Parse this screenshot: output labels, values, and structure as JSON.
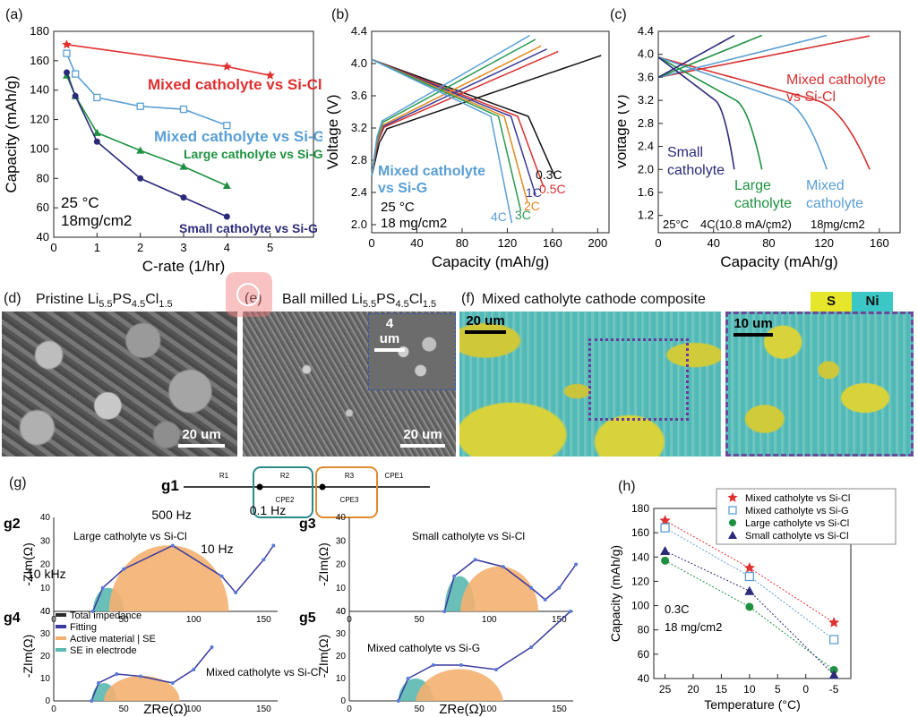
{
  "panels": {
    "a": "(a)",
    "b": "(b)",
    "c": "(c)",
    "d": "(d)",
    "e": "(e)",
    "f": "(f)",
    "g": "(g)",
    "h": "(h)"
  },
  "micrographs": {
    "d_title_pre": "Pristine Li",
    "d_sub1": "5.5",
    "d_mid1": "PS",
    "d_sub2": "4.5",
    "d_mid2": "Cl",
    "d_sub3": "1.5",
    "e_title_pre": "Ball milled Li",
    "f_title": "Mixed catholyte cathode composite",
    "legend_s": "S",
    "legend_ni": "Ni",
    "scale_d": "20 um",
    "scale_e": "20 um",
    "scale_e_inset": "4 um",
    "scale_f": "20 um",
    "scale_f_zoom": "10 um"
  },
  "chart_data": [
    {
      "id": "a",
      "type": "line",
      "xlabel": "C-rate (1/hr)",
      "ylabel": "Capacity (mAh/g)",
      "xlim": [
        0,
        6
      ],
      "ylim": [
        40,
        180
      ],
      "xticks": [
        0,
        1,
        2,
        3,
        4,
        5
      ],
      "yticks": [
        40,
        60,
        80,
        100,
        120,
        140,
        160,
        180
      ],
      "notes": [
        "25 °C",
        "18mg/cm2"
      ],
      "series": [
        {
          "name": "Mixed catholyte vs Si-Cl",
          "color": "#e03030",
          "marker": "star",
          "x": [
            0.3,
            4,
            5
          ],
          "y": [
            171,
            156,
            150
          ]
        },
        {
          "name": "Mixed catholyte vs Si-G",
          "color": "#5a9fd4",
          "marker": "square",
          "x": [
            0.3,
            0.5,
            1,
            2,
            3,
            4
          ],
          "y": [
            165,
            151,
            135,
            129,
            127,
            116
          ]
        },
        {
          "name": "Large catholyte vs Si-G",
          "color": "#1e9140",
          "marker": "triangle",
          "x": [
            0.3,
            0.5,
            1,
            2,
            3,
            4
          ],
          "y": [
            150,
            136,
            111,
            99,
            88,
            75
          ]
        },
        {
          "name": "Small catholyte vs Si-G",
          "color": "#2b2b7a",
          "marker": "circle",
          "x": [
            0.3,
            0.5,
            1,
            2,
            3,
            4
          ],
          "y": [
            152,
            136,
            105,
            80,
            67,
            54
          ]
        }
      ],
      "labels": [
        {
          "text": "Mixed catholyte vs Si-Cl",
          "color": "#e03030"
        },
        {
          "text": "Mixed catholyte vs Si-G",
          "color": "#5a9fd4"
        },
        {
          "text": "Large catholyte vs Si-G",
          "color": "#1e9140"
        },
        {
          "text": "Small catholyte vs Si-G",
          "color": "#2b2b7a"
        }
      ]
    },
    {
      "id": "b",
      "type": "line",
      "xlabel": "Capacity (mAh/g)",
      "ylabel": "Voltage (V)",
      "xlim": [
        0,
        210
      ],
      "ylim": [
        1.9,
        4.4
      ],
      "xticks": [
        0,
        40,
        80,
        120,
        160,
        200
      ],
      "yticks": [
        2.0,
        2.4,
        2.8,
        3.2,
        3.6,
        4.0,
        4.4
      ],
      "notes": [
        "Mixed catholyte",
        "vs Si-G",
        "25 °C",
        "18 mg/cm2"
      ],
      "series": [
        {
          "name": "0.3C",
          "color": "#111111",
          "charge_end": [
            203,
            4.1
          ],
          "discharge_end": [
            163,
            2.55
          ]
        },
        {
          "name": "0.5C",
          "color": "#d83030",
          "charge_end": [
            165,
            4.15
          ],
          "discharge_end": [
            152,
            2.45
          ]
        },
        {
          "name": "1C",
          "color": "#3a3a9a",
          "charge_end": [
            155,
            4.18
          ],
          "discharge_end": [
            145,
            2.35
          ]
        },
        {
          "name": "2C",
          "color": "#e08a20",
          "charge_end": [
            150,
            4.22
          ],
          "discharge_end": [
            138,
            2.25
          ]
        },
        {
          "name": "3C",
          "color": "#2a9a50",
          "charge_end": [
            145,
            4.3
          ],
          "discharge_end": [
            132,
            2.15
          ]
        },
        {
          "name": "4C",
          "color": "#5a9fd4",
          "charge_end": [
            140,
            4.35
          ],
          "discharge_end": [
            124,
            2.0
          ]
        }
      ]
    },
    {
      "id": "c",
      "type": "line",
      "xlabel": "Capacity (mAh/g)",
      "ylabel": "Voltage (V)",
      "xlim": [
        0,
        175
      ],
      "ylim": [
        0.9,
        4.4
      ],
      "xticks": [
        0,
        40,
        80,
        120,
        160
      ],
      "yticks": [
        1.2,
        1.6,
        2.0,
        2.4,
        2.8,
        3.2,
        3.6,
        4.0,
        4.4
      ],
      "notes": [
        "25°C",
        "4C(10.8 mA/cm2)",
        "18mg/cm2"
      ],
      "series": [
        {
          "name": "Mixed catholyte vs Si-Cl",
          "color": "#d83030",
          "charge_end": [
            153,
            4.32
          ],
          "discharge_end": [
            153,
            2.0
          ]
        },
        {
          "name": "Mixed catholyte",
          "color": "#5a9fd4",
          "charge_end": [
            122,
            4.33
          ],
          "discharge_end": [
            122,
            2.05
          ]
        },
        {
          "name": "Large catholyte",
          "color": "#1e9140",
          "charge_end": [
            75,
            4.33
          ],
          "discharge_end": [
            75,
            2.0
          ]
        },
        {
          "name": "Small catholyte",
          "color": "#2b2b7a",
          "charge_end": [
            55,
            4.33
          ],
          "discharge_end": [
            55,
            2.0
          ]
        }
      ],
      "labels": [
        {
          "text": "Mixed catholyte",
          "color": "#d83030"
        },
        {
          "text": "vs Si-Cl",
          "color": "#d83030"
        },
        {
          "text": "Small",
          "color": "#2b2b7a"
        },
        {
          "text": "catholyte",
          "color": "#2b2b7a"
        },
        {
          "text": "Large",
          "color": "#1e9140"
        },
        {
          "text": "catholyte",
          "color": "#1e9140"
        },
        {
          "text": "Mixed",
          "color": "#5a9fd4"
        },
        {
          "text": "catholyte",
          "color": "#5a9fd4"
        }
      ]
    },
    {
      "id": "g",
      "type": "scatter",
      "circuit": {
        "name": "g1",
        "elements": [
          "R1",
          "R2",
          "CPE2",
          "R3",
          "CPE3",
          "CPE1"
        ]
      },
      "xlabel": "ZRe(Ω)",
      "ylabel": "-ZIm(Ω)",
      "subplots": [
        {
          "id": "g2",
          "label": "Large catholyte vs Si-Cl",
          "annotations": [
            "500 Hz",
            "0.1 Hz",
            "10 Hz",
            "10 kHz"
          ],
          "xlim": [
            0,
            160
          ],
          "ylim": [
            0,
            40
          ],
          "xticks": [
            0,
            50,
            100,
            150
          ],
          "yticks": [
            0,
            10,
            20,
            30,
            40
          ],
          "points": [
            [
              28,
              0
            ],
            [
              35,
              10
            ],
            [
              50,
              18
            ],
            [
              85,
              28
            ],
            [
              120,
              15
            ],
            [
              130,
              8
            ],
            [
              150,
              22
            ],
            [
              157,
              28
            ]
          ]
        },
        {
          "id": "g3",
          "label": "Small catholyte vs Si-Cl",
          "xlim": [
            0,
            160
          ],
          "ylim": [
            0,
            40
          ],
          "xticks": [
            0,
            50,
            100,
            150
          ],
          "yticks": [
            0,
            10,
            20,
            30,
            40
          ],
          "points": [
            [
              68,
              0
            ],
            [
              75,
              15
            ],
            [
              90,
              22
            ],
            [
              110,
              19
            ],
            [
              130,
              10
            ],
            [
              140,
              5
            ],
            [
              150,
              10
            ],
            [
              162,
              20
            ]
          ]
        },
        {
          "id": "g4",
          "label": "Mixed catholyte vs Si-Cl",
          "xlim": [
            0,
            160
          ],
          "ylim": [
            0,
            40
          ],
          "xticks": [
            0,
            50,
            100,
            150
          ],
          "yticks": [
            0,
            10,
            20,
            30,
            40
          ],
          "points": [
            [
              27,
              0
            ],
            [
              32,
              8
            ],
            [
              45,
              12
            ],
            [
              62,
              11
            ],
            [
              85,
              8
            ],
            [
              100,
              14
            ],
            [
              113,
              24
            ]
          ],
          "legend": [
            "Total impedance",
            "Fitting",
            "Active material | SE",
            "SE in electrode"
          ]
        },
        {
          "id": "g5",
          "label": "Mixed catholyte vs Si-G",
          "xlim": [
            0,
            160
          ],
          "ylim": [
            0,
            40
          ],
          "xticks": [
            0,
            50,
            100,
            150
          ],
          "yticks": [
            0,
            10,
            20,
            30,
            40
          ],
          "points": [
            [
              35,
              0
            ],
            [
              42,
              10
            ],
            [
              60,
              16
            ],
            [
              80,
              16
            ],
            [
              105,
              14
            ],
            [
              130,
              24
            ],
            [
              158,
              40
            ]
          ]
        }
      ]
    },
    {
      "id": "h",
      "type": "scatter",
      "xlabel": "Temperature (°C)",
      "ylabel": "Capacity (mAh/g)",
      "xlim": [
        27,
        -8
      ],
      "ylim": [
        40,
        180
      ],
      "xticks": [
        25,
        20,
        15,
        10,
        5,
        0,
        -5
      ],
      "yticks": [
        40,
        60,
        80,
        100,
        120,
        140,
        160,
        180
      ],
      "notes": [
        "0.3C",
        "18 mg/cm2"
      ],
      "series": [
        {
          "name": "Mixed catholyte vs Si-Cl",
          "color": "#e03030",
          "marker": "star",
          "x": [
            25,
            10,
            -5
          ],
          "y": [
            170,
            131,
            86
          ]
        },
        {
          "name": "Mixed catholyte vs Si-G",
          "color": "#5a9fd4",
          "marker": "square",
          "x": [
            25,
            10,
            -5
          ],
          "y": [
            164,
            124,
            72
          ]
        },
        {
          "name": "Large catholyte vs Si-Cl",
          "color": "#1e9140",
          "marker": "circle",
          "x": [
            25,
            10,
            -5
          ],
          "y": [
            137,
            99,
            47
          ]
        },
        {
          "name": "Small catholyte vs Si-Cl",
          "color": "#2b2b7a",
          "marker": "triangle",
          "x": [
            25,
            10,
            -5
          ],
          "y": [
            145,
            112,
            43
          ]
        }
      ]
    }
  ]
}
